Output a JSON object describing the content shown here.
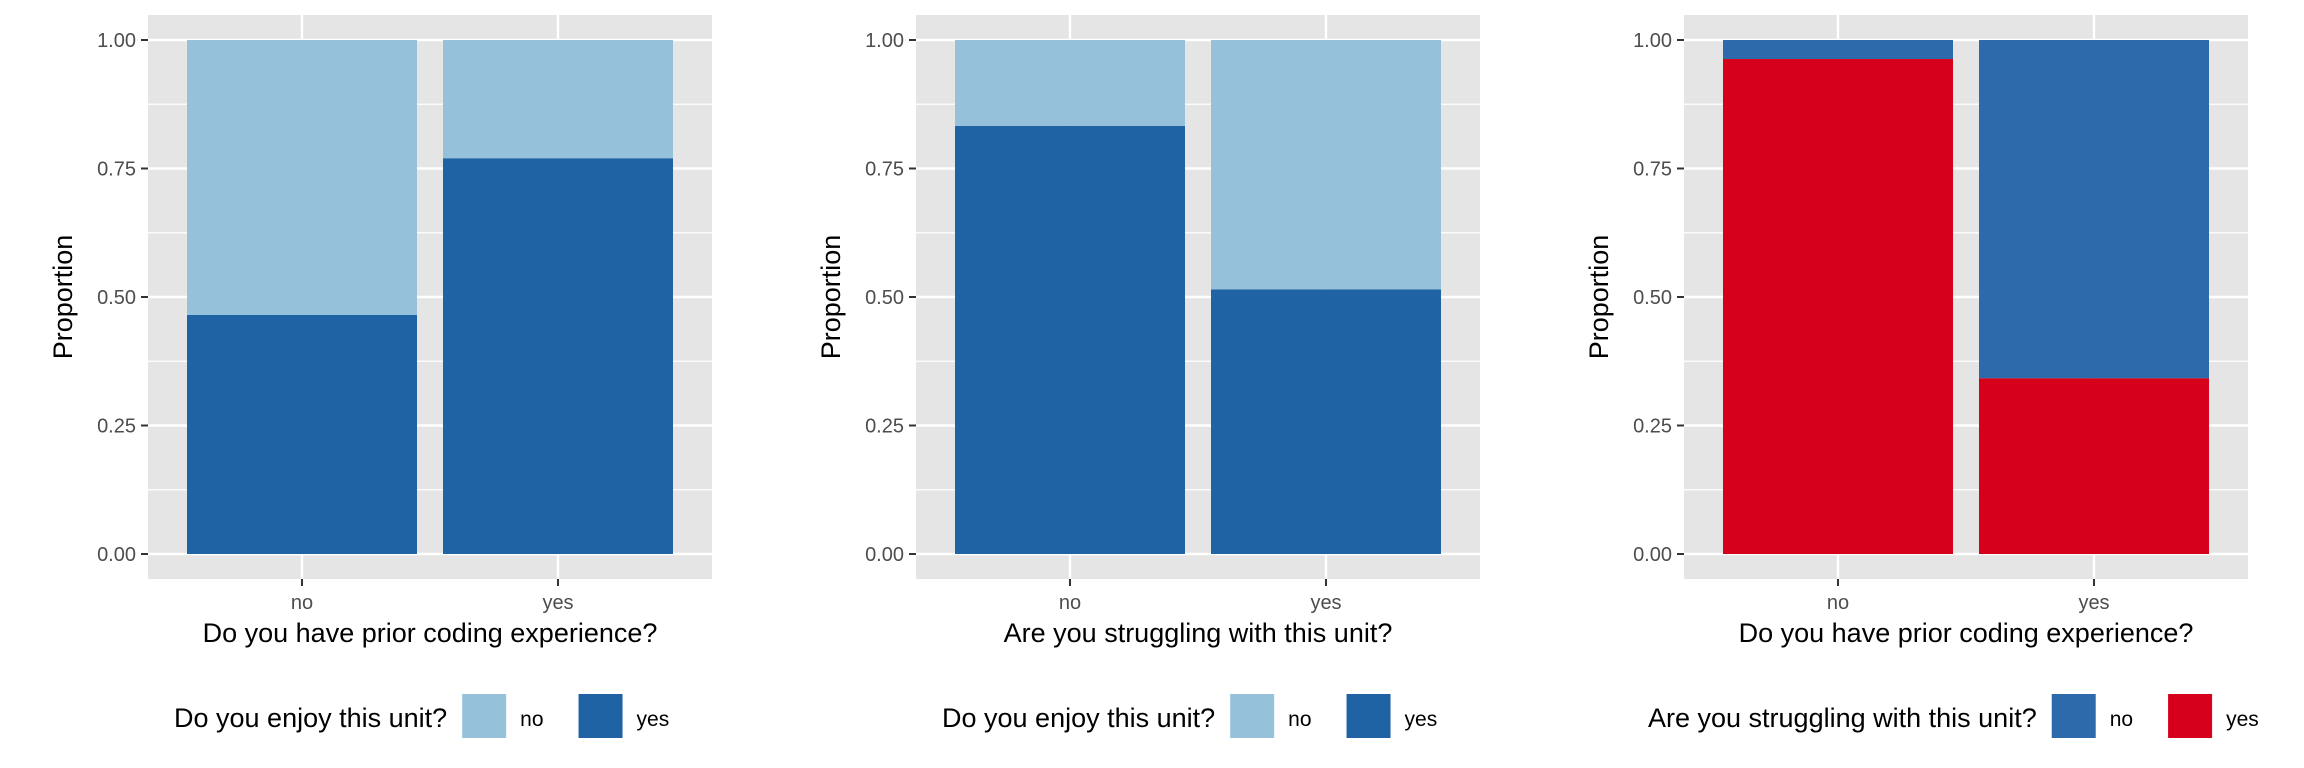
{
  "colors": {
    "panel_bg": "#e5e5e5",
    "grid": "#ffffff",
    "tick_text": "#4d4d4d",
    "text": "#000000"
  },
  "chart_data": [
    {
      "type": "bar",
      "stacked": true,
      "position": "fill",
      "xlabel": "Do you have prior coding experience?",
      "ylabel": "Proportion",
      "categories": [
        "no",
        "yes"
      ],
      "yticks": [
        "0.00",
        "0.25",
        "0.50",
        "0.75",
        "1.00"
      ],
      "ylim": [
        0,
        1
      ],
      "grid": true,
      "legend": {
        "title": "Do you enjoy this unit?",
        "position": "bottom"
      },
      "series": [
        {
          "name": "yes",
          "color": "#1f63a5",
          "values": [
            0.465,
            0.77
          ]
        },
        {
          "name": "no",
          "color": "#96c1da",
          "values": [
            0.535,
            0.23
          ]
        }
      ],
      "legend_order": [
        "no",
        "yes"
      ]
    },
    {
      "type": "bar",
      "stacked": true,
      "position": "fill",
      "xlabel": "Are you struggling with this unit?",
      "ylabel": "Proportion",
      "categories": [
        "no",
        "yes"
      ],
      "yticks": [
        "0.00",
        "0.25",
        "0.50",
        "0.75",
        "1.00"
      ],
      "ylim": [
        0,
        1
      ],
      "grid": true,
      "legend": {
        "title": "Do you enjoy this unit?",
        "position": "bottom"
      },
      "series": [
        {
          "name": "yes",
          "color": "#1f63a5",
          "values": [
            0.833,
            0.515
          ]
        },
        {
          "name": "no",
          "color": "#96c1da",
          "values": [
            0.167,
            0.485
          ]
        }
      ],
      "legend_order": [
        "no",
        "yes"
      ]
    },
    {
      "type": "bar",
      "stacked": true,
      "position": "fill",
      "xlabel": "Do you have prior coding experience?",
      "ylabel": "Proportion",
      "categories": [
        "no",
        "yes"
      ],
      "yticks": [
        "0.00",
        "0.25",
        "0.50",
        "0.75",
        "1.00"
      ],
      "ylim": [
        0,
        1
      ],
      "grid": true,
      "legend": {
        "title": "Are you struggling with this unit?",
        "position": "bottom"
      },
      "series": [
        {
          "name": "yes",
          "color": "#d7001b",
          "values": [
            0.963,
            0.342
          ]
        },
        {
          "name": "no",
          "color": "#2c6aab",
          "values": [
            0.037,
            0.658
          ]
        }
      ],
      "legend_order": [
        "no",
        "yes"
      ]
    }
  ]
}
